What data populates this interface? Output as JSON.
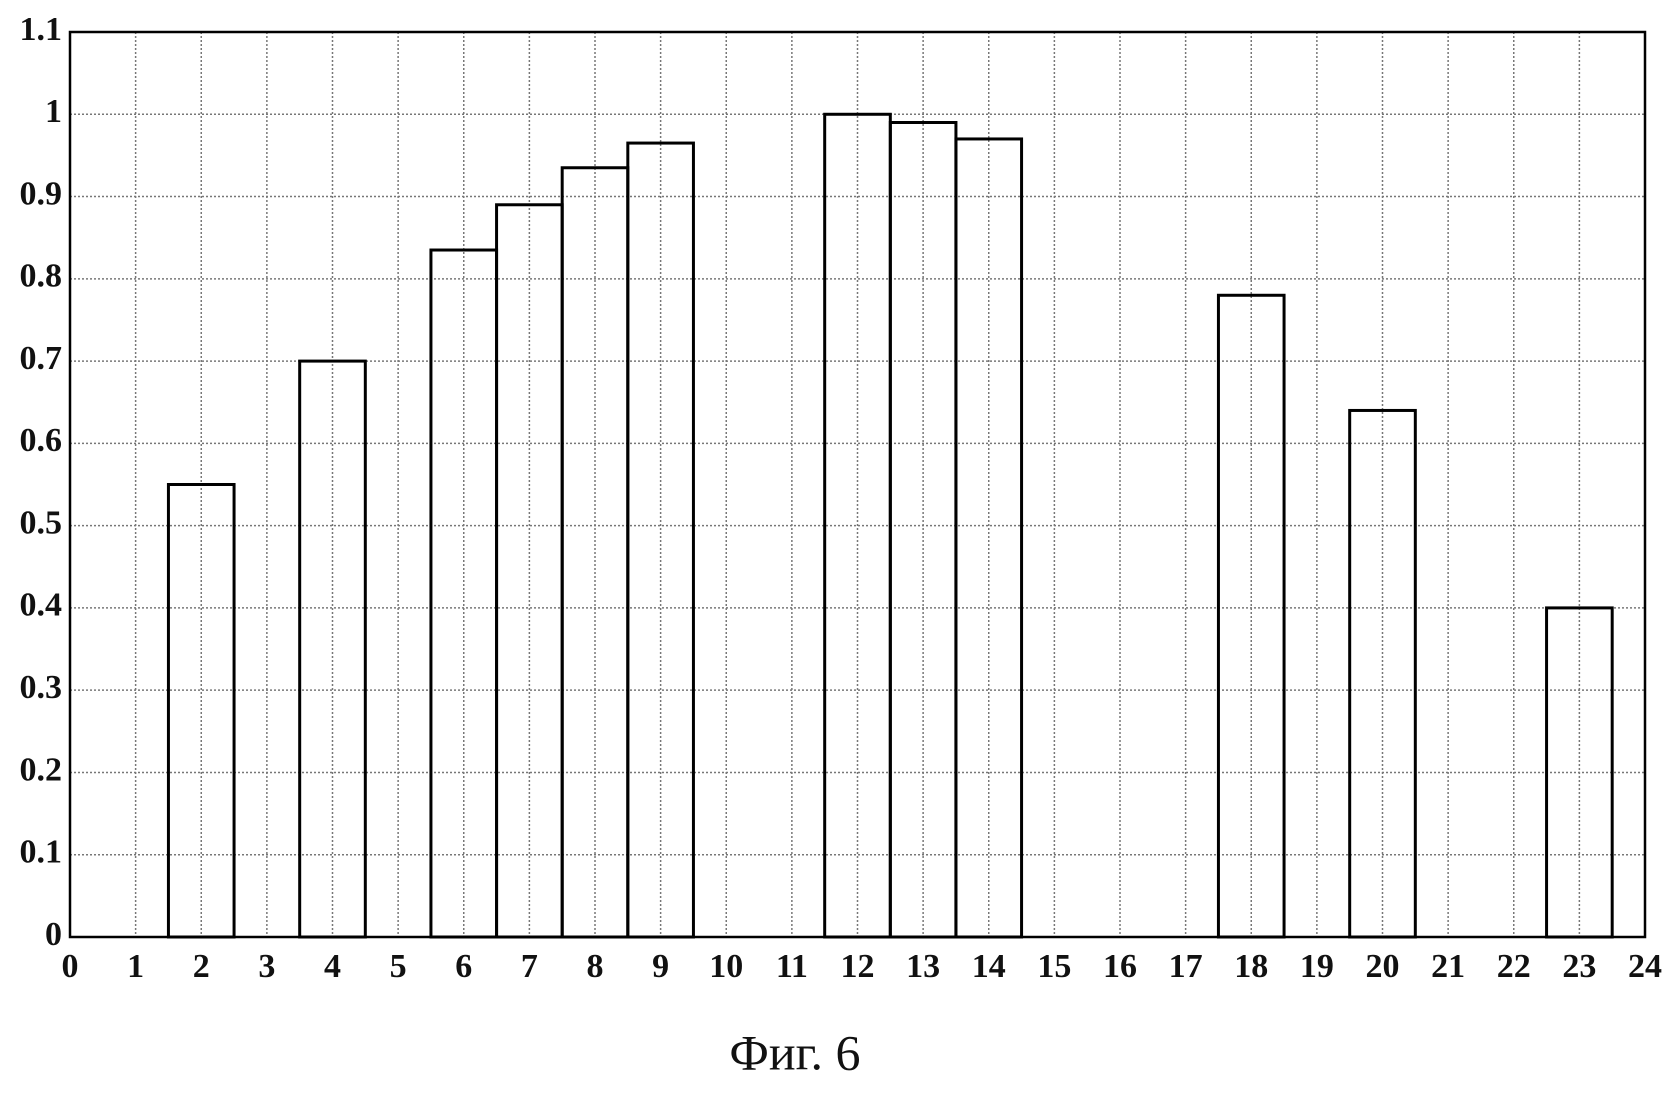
{
  "chart_data": {
    "type": "bar",
    "caption": "Фиг. 6",
    "x": [
      2,
      4,
      6,
      7,
      8,
      9,
      12,
      13,
      14,
      18,
      20,
      23
    ],
    "values": [
      0.55,
      0.7,
      0.835,
      0.89,
      0.935,
      0.965,
      1.0,
      0.99,
      0.97,
      0.78,
      0.64,
      0.4
    ],
    "bar_width": 1,
    "color": "#000000",
    "xlim": [
      0,
      24
    ],
    "xticks": [
      0,
      1,
      2,
      3,
      4,
      5,
      6,
      7,
      8,
      9,
      10,
      11,
      12,
      13,
      14,
      15,
      16,
      17,
      18,
      19,
      20,
      21,
      22,
      23,
      24
    ],
    "ylim": [
      0,
      1.1
    ],
    "yticks": [
      0,
      0.1,
      0.2,
      0.3,
      0.4,
      0.5,
      0.6,
      0.7,
      0.8,
      0.9,
      1,
      1.1
    ],
    "grid": true
  }
}
